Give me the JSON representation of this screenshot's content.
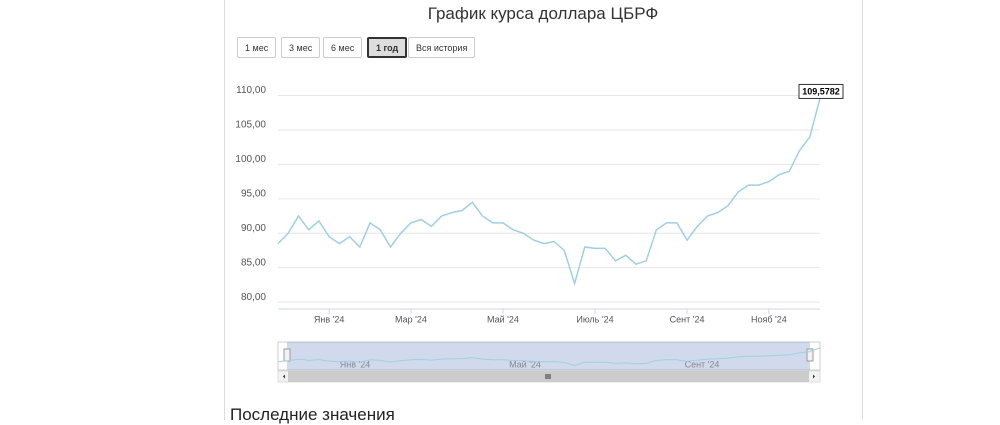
{
  "chart_data": {
    "type": "line",
    "title": "График курса доллара ЦБРФ",
    "buttons": [
      "1 мес",
      "3 мес",
      "6 мес",
      "1 год",
      "Вся история"
    ],
    "selected_button": "1 год",
    "categories": [
      null,
      null,
      null,
      null,
      null,
      "Янв '24",
      null,
      null,
      null,
      null,
      null,
      null,
      null,
      "Мар '24",
      null,
      null,
      null,
      null,
      null,
      null,
      null,
      null,
      "Май '24",
      null,
      null,
      null,
      null,
      null,
      null,
      null,
      null,
      "Июль '24",
      null,
      null,
      null,
      null,
      null,
      null,
      null,
      null,
      "Сент '24",
      null,
      null,
      null,
      null,
      null,
      null,
      null,
      "Нояб '24",
      null,
      null,
      null,
      null,
      null
    ],
    "series": [
      {
        "color": "#9fcfe6",
        "values": [
          88.5,
          90,
          92.5,
          90.5,
          91.8,
          89.5,
          88.5,
          89.5,
          88,
          91.5,
          90.5,
          88,
          90,
          91.5,
          92,
          91,
          92.5,
          93,
          93.3,
          94.5,
          92.5,
          91.5,
          91.5,
          90.5,
          90,
          89,
          88.5,
          88.8,
          87.5,
          82.7,
          88,
          87.8,
          87.8,
          86,
          86.8,
          85.5,
          86,
          90.5,
          91.5,
          91.5,
          89,
          91,
          92.5,
          93,
          94,
          96,
          97,
          97,
          97.5,
          98.5,
          99,
          102,
          104,
          109.5782
        ],
        "value_labels": [
          null,
          null,
          null,
          null,
          null,
          null,
          null,
          null,
          null,
          null,
          null,
          null,
          null,
          null,
          null,
          null,
          null,
          null,
          null,
          null,
          null,
          null,
          null,
          null,
          null,
          null,
          null,
          null,
          null,
          null,
          null,
          null,
          null,
          null,
          null,
          null,
          null,
          null,
          null,
          null,
          null,
          null,
          null,
          null,
          null,
          null,
          null,
          null,
          null,
          null,
          null,
          null,
          null,
          "109,5782"
        ]
      }
    ],
    "ylim": [
      79,
      114
    ],
    "yticks": [
      {
        "value": 80,
        "label": "80,00"
      },
      {
        "value": 85,
        "label": "85,00"
      },
      {
        "value": 90,
        "label": "90,00"
      },
      {
        "value": 95,
        "label": "95,00"
      },
      {
        "value": 100,
        "label": "100,00"
      },
      {
        "value": 105,
        "label": "105,00"
      },
      {
        "value": 110,
        "label": "110,00"
      }
    ],
    "grid": true,
    "navigator": {
      "labels": [
        "Янв '24",
        "Май '24",
        "Сент '24"
      ]
    }
  },
  "footer": {
    "heading": "Последние значения"
  }
}
